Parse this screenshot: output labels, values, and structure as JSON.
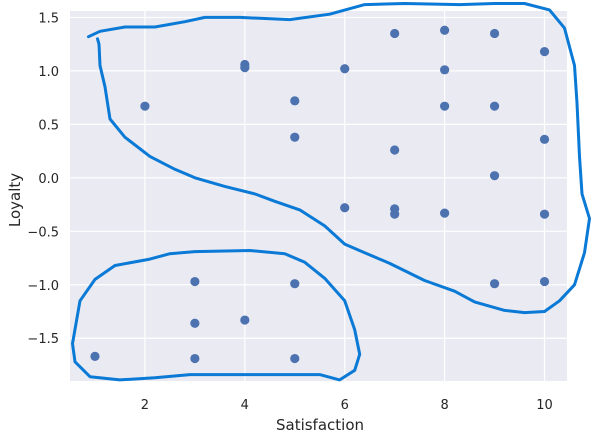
{
  "chart_data": {
    "type": "scatter",
    "title": "",
    "xlabel": "Satisfaction",
    "ylabel": "Loyalty",
    "xlim": [
      0.5,
      10.45
    ],
    "ylim": [
      -1.9,
      1.56
    ],
    "xticks": [
      2,
      4,
      6,
      8,
      10
    ],
    "yticks": [
      1.5,
      1.0,
      0.5,
      0.0,
      -0.5,
      -1.0,
      -1.5
    ],
    "grid": true,
    "colors": {
      "background": "#eaeaf2",
      "points": "#4c72b0",
      "cluster_outline": "#0a7ad6"
    },
    "series": [
      {
        "points": [
          [
            1,
            -1.67
          ],
          [
            2,
            0.67
          ],
          [
            3,
            -0.97
          ],
          [
            3,
            -1.36
          ],
          [
            3,
            -1.69
          ],
          [
            4,
            1.06
          ],
          [
            4,
            1.03
          ],
          [
            4,
            -1.33
          ],
          [
            5,
            0.72
          ],
          [
            5,
            0.38
          ],
          [
            5,
            -0.99
          ],
          [
            5,
            -1.69
          ],
          [
            6,
            1.02
          ],
          [
            6,
            -0.28
          ],
          [
            7,
            1.35
          ],
          [
            7,
            0.26
          ],
          [
            7,
            -0.29
          ],
          [
            7,
            -0.34
          ],
          [
            8,
            1.38
          ],
          [
            8,
            1.01
          ],
          [
            8,
            0.67
          ],
          [
            8,
            -0.33
          ],
          [
            9,
            1.35
          ],
          [
            9,
            0.67
          ],
          [
            9,
            0.02
          ],
          [
            9,
            -0.99
          ],
          [
            10,
            1.18
          ],
          [
            10,
            0.36
          ],
          [
            10,
            -0.34
          ],
          [
            10,
            -0.97
          ]
        ]
      }
    ],
    "annotations": [
      {
        "type": "freehand-outline",
        "path": [
          [
            0.87,
            1.32
          ],
          [
            1.1,
            1.37
          ],
          [
            1.6,
            1.41
          ],
          [
            2.2,
            1.41
          ],
          [
            2.8,
            1.46
          ],
          [
            3.2,
            1.5
          ],
          [
            3.9,
            1.5
          ],
          [
            4.9,
            1.48
          ],
          [
            5.7,
            1.53
          ],
          [
            6.4,
            1.62
          ],
          [
            7.2,
            1.63
          ],
          [
            8.3,
            1.62
          ],
          [
            9.0,
            1.63
          ],
          [
            9.6,
            1.63
          ],
          [
            10.1,
            1.57
          ],
          [
            10.4,
            1.4
          ],
          [
            10.6,
            1.05
          ],
          [
            10.65,
            0.7
          ],
          [
            10.7,
            0.2
          ],
          [
            10.75,
            -0.15
          ],
          [
            10.9,
            -0.38
          ],
          [
            10.8,
            -0.7
          ],
          [
            10.6,
            -1.0
          ],
          [
            10.3,
            -1.15
          ],
          [
            10.0,
            -1.25
          ],
          [
            9.6,
            -1.26
          ],
          [
            9.2,
            -1.24
          ],
          [
            8.6,
            -1.16
          ],
          [
            8.2,
            -1.06
          ],
          [
            7.6,
            -0.96
          ],
          [
            6.9,
            -0.8
          ],
          [
            6.4,
            -0.7
          ],
          [
            6.0,
            -0.62
          ],
          [
            5.6,
            -0.45
          ],
          [
            5.1,
            -0.3
          ],
          [
            4.6,
            -0.22
          ],
          [
            4.2,
            -0.15
          ],
          [
            3.6,
            -0.08
          ],
          [
            3.0,
            0.0
          ],
          [
            2.6,
            0.08
          ],
          [
            2.1,
            0.2
          ],
          [
            1.6,
            0.38
          ],
          [
            1.3,
            0.55
          ],
          [
            1.2,
            0.85
          ],
          [
            1.1,
            1.05
          ],
          [
            1.08,
            1.25
          ],
          [
            1.05,
            1.3
          ]
        ]
      },
      {
        "type": "freehand-outline",
        "path": [
          [
            0.55,
            -1.55
          ],
          [
            0.7,
            -1.15
          ],
          [
            1.0,
            -0.95
          ],
          [
            1.4,
            -0.82
          ],
          [
            2.1,
            -0.76
          ],
          [
            2.5,
            -0.71
          ],
          [
            3.0,
            -0.69
          ],
          [
            4.1,
            -0.68
          ],
          [
            4.8,
            -0.71
          ],
          [
            5.2,
            -0.79
          ],
          [
            5.6,
            -0.94
          ],
          [
            6.0,
            -1.15
          ],
          [
            6.2,
            -1.42
          ],
          [
            6.3,
            -1.65
          ],
          [
            6.2,
            -1.8
          ],
          [
            5.9,
            -1.89
          ],
          [
            5.5,
            -1.84
          ],
          [
            4.1,
            -1.84
          ],
          [
            3.4,
            -1.84
          ],
          [
            2.9,
            -1.84
          ],
          [
            2.2,
            -1.87
          ],
          [
            1.5,
            -1.89
          ],
          [
            0.9,
            -1.86
          ],
          [
            0.6,
            -1.72
          ],
          [
            0.55,
            -1.55
          ]
        ]
      }
    ]
  }
}
